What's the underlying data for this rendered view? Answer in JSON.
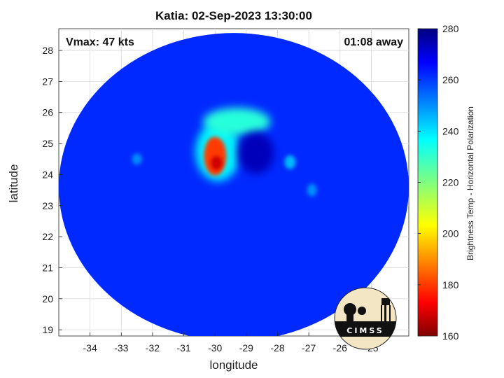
{
  "chart_data": {
    "type": "heatmap",
    "title": "Katia: 02-Sep-2023 13:30:00",
    "annotations": {
      "vmax": "Vmax: 47 kts",
      "time_away": "01:08 away"
    },
    "xlabel": "longitude",
    "ylabel": "latitude",
    "xlim": [
      -35.0,
      -23.8
    ],
    "ylim": [
      18.8,
      28.7
    ],
    "xticks": [
      -34,
      -33,
      -32,
      -31,
      -30,
      -29,
      -28,
      -27,
      -26,
      -25
    ],
    "yticks": [
      19,
      20,
      21,
      22,
      23,
      24,
      25,
      26,
      27,
      28
    ],
    "grid": true,
    "colorbar": {
      "label": "Brightness Temp - Horizontal Polarization",
      "range": [
        160,
        280
      ],
      "ticks": [
        160,
        180,
        200,
        220,
        240,
        260,
        280
      ],
      "colormap": "jet"
    },
    "swath": {
      "center_lon": -29.4,
      "center_lat": 23.6,
      "background_temp": 262
    },
    "features": [
      {
        "label": "cold core",
        "lon": -30.0,
        "lat": 24.6,
        "temp": 180
      },
      {
        "label": "cold band north arc",
        "lon": -29.3,
        "lat": 25.7,
        "temp": 232
      },
      {
        "label": "warm eye",
        "lon": -28.7,
        "lat": 24.7,
        "temp": 274
      },
      {
        "label": "small cloud east",
        "lon": -27.6,
        "lat": 24.4,
        "temp": 245
      },
      {
        "label": "small cloud southeast",
        "lon": -26.9,
        "lat": 23.5,
        "temp": 250
      },
      {
        "label": "small cloud west",
        "lon": -32.5,
        "lat": 24.5,
        "temp": 250
      }
    ]
  },
  "logo": {
    "text": "CIMSS"
  }
}
